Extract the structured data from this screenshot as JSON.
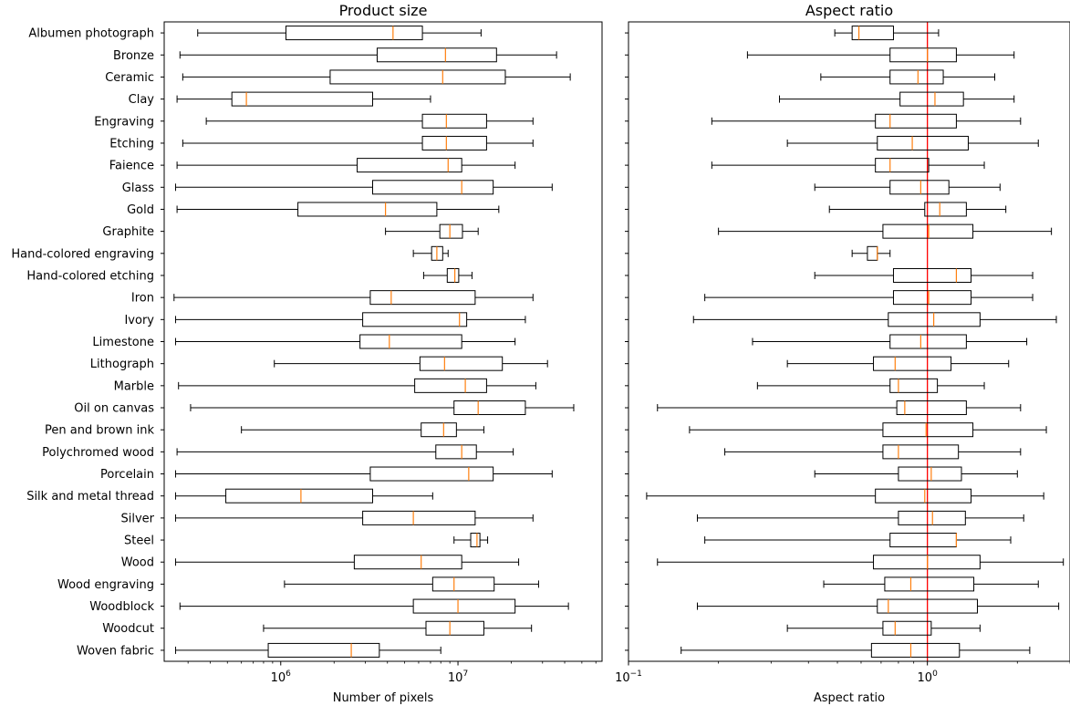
{
  "chart_data": [
    {
      "type": "boxplot",
      "orientation": "horizontal",
      "title": "Product size",
      "xlabel": "Number of pixels",
      "ylabel": "",
      "xscale": "log",
      "xlim": [
        220000,
        65000000
      ],
      "xticks": [
        {
          "value": 1000000,
          "base": "10",
          "exp": "6"
        },
        {
          "value": 10000000,
          "base": "10",
          "exp": "7"
        }
      ],
      "categories": [
        "Albumen photograph",
        "Bronze",
        "Ceramic",
        "Clay",
        "Engraving",
        "Etching",
        "Faience",
        "Glass",
        "Gold",
        "Graphite",
        "Hand-colored engraving",
        "Hand-colored etching",
        "Iron",
        "Ivory",
        "Limestone",
        "Lithograph",
        "Marble",
        "Oil on canvas",
        "Pen and brown ink",
        "Polychromed wood",
        "Porcelain",
        "Silk and metal thread",
        "Silver",
        "Steel",
        "Wood",
        "Wood engraving",
        "Woodblock",
        "Woodcut",
        "Woven fabric"
      ],
      "boxes": [
        {
          "category": "Albumen photograph",
          "whislo": 340000,
          "q1": 1070000,
          "med": 4300000,
          "q3": 6300000,
          "whishi": 13500000
        },
        {
          "category": "Bronze",
          "whislo": 270000,
          "q1": 3500000,
          "med": 8500000,
          "q3": 16500000,
          "whishi": 36000000
        },
        {
          "category": "Ceramic",
          "whislo": 280000,
          "q1": 1900000,
          "med": 8200000,
          "q3": 18500000,
          "whishi": 43000000
        },
        {
          "category": "Clay",
          "whislo": 260000,
          "q1": 530000,
          "med": 640000,
          "q3": 3300000,
          "whishi": 7000000
        },
        {
          "category": "Engraving",
          "whislo": 380000,
          "q1": 6300000,
          "med": 8600000,
          "q3": 14500000,
          "whishi": 26500000
        },
        {
          "category": "Etching",
          "whislo": 280000,
          "q1": 6300000,
          "med": 8600000,
          "q3": 14500000,
          "whishi": 26500000
        },
        {
          "category": "Faience",
          "whislo": 260000,
          "q1": 2700000,
          "med": 8800000,
          "q3": 10500000,
          "whishi": 21000000
        },
        {
          "category": "Glass",
          "whislo": 255000,
          "q1": 3300000,
          "med": 10500000,
          "q3": 15800000,
          "whishi": 34000000
        },
        {
          "category": "Gold",
          "whislo": 260000,
          "q1": 1250000,
          "med": 3900000,
          "q3": 7600000,
          "whishi": 17000000
        },
        {
          "category": "Graphite",
          "whislo": 3900000,
          "q1": 7900000,
          "med": 9000000,
          "q3": 10600000,
          "whishi": 13000000
        },
        {
          "category": "Hand-colored engraving",
          "whislo": 5600000,
          "q1": 7100000,
          "med": 7600000,
          "q3": 8200000,
          "whishi": 8800000
        },
        {
          "category": "Hand-colored etching",
          "whislo": 6400000,
          "q1": 8700000,
          "med": 9600000,
          "q3": 10100000,
          "whishi": 12000000
        },
        {
          "category": "Iron",
          "whislo": 250000,
          "q1": 3200000,
          "med": 4200000,
          "q3": 12500000,
          "whishi": 26500000
        },
        {
          "category": "Ivory",
          "whislo": 255000,
          "q1": 2900000,
          "med": 10200000,
          "q3": 11200000,
          "whishi": 24000000
        },
        {
          "category": "Limestone",
          "whislo": 255000,
          "q1": 2800000,
          "med": 4100000,
          "q3": 10500000,
          "whishi": 21000000
        },
        {
          "category": "Lithograph",
          "whislo": 920000,
          "q1": 6100000,
          "med": 8400000,
          "q3": 17800000,
          "whishi": 32000000
        },
        {
          "category": "Marble",
          "whislo": 265000,
          "q1": 5700000,
          "med": 11000000,
          "q3": 14500000,
          "whishi": 27500000
        },
        {
          "category": "Oil on canvas",
          "whislo": 310000,
          "q1": 9500000,
          "med": 13000000,
          "q3": 24000000,
          "whishi": 45000000
        },
        {
          "category": "Pen and brown ink",
          "whislo": 600000,
          "q1": 6200000,
          "med": 8300000,
          "q3": 9800000,
          "whishi": 14000000
        },
        {
          "category": "Polychromed wood",
          "whislo": 260000,
          "q1": 7500000,
          "med": 10500000,
          "q3": 12700000,
          "whishi": 20500000
        },
        {
          "category": "Porcelain",
          "whislo": 255000,
          "q1": 3200000,
          "med": 11500000,
          "q3": 15800000,
          "whishi": 34000000
        },
        {
          "category": "Silk and metal thread",
          "whislo": 255000,
          "q1": 490000,
          "med": 1300000,
          "q3": 3300000,
          "whishi": 7200000
        },
        {
          "category": "Silver",
          "whislo": 255000,
          "q1": 2900000,
          "med": 5600000,
          "q3": 12500000,
          "whishi": 26500000
        },
        {
          "category": "Steel",
          "whislo": 9500000,
          "q1": 11800000,
          "med": 12800000,
          "q3": 13300000,
          "whishi": 14700000
        },
        {
          "category": "Wood",
          "whislo": 255000,
          "q1": 2600000,
          "med": 6200000,
          "q3": 10500000,
          "whishi": 22000000
        },
        {
          "category": "Wood engraving",
          "whislo": 1050000,
          "q1": 7200000,
          "med": 9500000,
          "q3": 16000000,
          "whishi": 28500000
        },
        {
          "category": "Woodblock",
          "whislo": 270000,
          "q1": 5600000,
          "med": 10000000,
          "q3": 21000000,
          "whishi": 42000000
        },
        {
          "category": "Woodcut",
          "whislo": 800000,
          "q1": 6600000,
          "med": 9000000,
          "q3": 14000000,
          "whishi": 26000000
        },
        {
          "category": "Woven fabric",
          "whislo": 255000,
          "q1": 850000,
          "med": 2500000,
          "q3": 3600000,
          "whishi": 8000000
        }
      ]
    },
    {
      "type": "boxplot",
      "orientation": "horizontal",
      "title": "Aspect ratio",
      "xlabel": "Aspect ratio",
      "ylabel": "",
      "xscale": "log",
      "xlim": [
        0.1,
        3.0
      ],
      "xticks": [
        {
          "value": 0.1,
          "base": "10",
          "exp": "−1"
        },
        {
          "value": 1.0,
          "base": "10",
          "exp": "0"
        }
      ],
      "reference_line": {
        "x": 1.0,
        "color": "#ff0000"
      },
      "categories": [
        "Albumen photograph",
        "Bronze",
        "Ceramic",
        "Clay",
        "Engraving",
        "Etching",
        "Faience",
        "Glass",
        "Gold",
        "Graphite",
        "Hand-colored engraving",
        "Hand-colored etching",
        "Iron",
        "Ivory",
        "Limestone",
        "Lithograph",
        "Marble",
        "Oil on canvas",
        "Pen and brown ink",
        "Polychromed wood",
        "Porcelain",
        "Silk and metal thread",
        "Silver",
        "Steel",
        "Wood",
        "Wood engraving",
        "Woodblock",
        "Woodcut",
        "Woven fabric"
      ],
      "boxes": [
        {
          "category": "Albumen photograph",
          "whislo": 0.49,
          "q1": 0.56,
          "med": 0.59,
          "q3": 0.77,
          "whishi": 1.09
        },
        {
          "category": "Bronze",
          "whislo": 0.25,
          "q1": 0.75,
          "med": 1.0,
          "q3": 1.25,
          "whishi": 1.95
        },
        {
          "category": "Ceramic",
          "whislo": 0.44,
          "q1": 0.75,
          "med": 0.93,
          "q3": 1.13,
          "whishi": 1.68
        },
        {
          "category": "Clay",
          "whislo": 0.32,
          "q1": 0.81,
          "med": 1.06,
          "q3": 1.32,
          "whishi": 1.95
        },
        {
          "category": "Engraving",
          "whislo": 0.19,
          "q1": 0.67,
          "med": 0.75,
          "q3": 1.25,
          "whishi": 2.05
        },
        {
          "category": "Etching",
          "whislo": 0.34,
          "q1": 0.68,
          "med": 0.89,
          "q3": 1.37,
          "whishi": 2.35
        },
        {
          "category": "Faience",
          "whislo": 0.19,
          "q1": 0.67,
          "med": 0.75,
          "q3": 1.01,
          "whishi": 1.55
        },
        {
          "category": "Glass",
          "whislo": 0.42,
          "q1": 0.75,
          "med": 0.95,
          "q3": 1.18,
          "whishi": 1.75
        },
        {
          "category": "Gold",
          "whislo": 0.47,
          "q1": 0.98,
          "med": 1.1,
          "q3": 1.35,
          "whishi": 1.83
        },
        {
          "category": "Graphite",
          "whislo": 0.2,
          "q1": 0.71,
          "med": 1.01,
          "q3": 1.42,
          "whishi": 2.6
        },
        {
          "category": "Hand-colored engraving",
          "whislo": 0.56,
          "q1": 0.63,
          "med": 0.68,
          "q3": 0.68,
          "whishi": 0.75
        },
        {
          "category": "Hand-colored etching",
          "whislo": 0.42,
          "q1": 0.77,
          "med": 1.25,
          "q3": 1.4,
          "whishi": 2.25
        },
        {
          "category": "Iron",
          "whislo": 0.18,
          "q1": 0.77,
          "med": 1.01,
          "q3": 1.4,
          "whishi": 2.25
        },
        {
          "category": "Ivory",
          "whislo": 0.165,
          "q1": 0.74,
          "med": 1.05,
          "q3": 1.5,
          "whishi": 2.7
        },
        {
          "category": "Limestone",
          "whislo": 0.26,
          "q1": 0.75,
          "med": 0.95,
          "q3": 1.35,
          "whishi": 2.15
        },
        {
          "category": "Lithograph",
          "whislo": 0.34,
          "q1": 0.66,
          "med": 0.78,
          "q3": 1.2,
          "whishi": 1.87
        },
        {
          "category": "Marble",
          "whislo": 0.27,
          "q1": 0.75,
          "med": 0.8,
          "q3": 1.08,
          "whishi": 1.55
        },
        {
          "category": "Oil on canvas",
          "whislo": 0.125,
          "q1": 0.79,
          "med": 0.84,
          "q3": 1.35,
          "whishi": 2.05
        },
        {
          "category": "Pen and brown ink",
          "whislo": 0.16,
          "q1": 0.71,
          "med": 0.99,
          "q3": 1.42,
          "whishi": 2.5
        },
        {
          "category": "Polychromed wood",
          "whislo": 0.21,
          "q1": 0.71,
          "med": 0.8,
          "q3": 1.27,
          "whishi": 2.05
        },
        {
          "category": "Porcelain",
          "whislo": 0.42,
          "q1": 0.8,
          "med": 1.03,
          "q3": 1.3,
          "whishi": 2.0
        },
        {
          "category": "Silk and metal thread",
          "whislo": 0.115,
          "q1": 0.67,
          "med": 0.98,
          "q3": 1.4,
          "whishi": 2.45
        },
        {
          "category": "Silver",
          "whislo": 0.17,
          "q1": 0.8,
          "med": 1.04,
          "q3": 1.34,
          "whishi": 2.1
        },
        {
          "category": "Steel",
          "whislo": 0.18,
          "q1": 0.75,
          "med": 1.25,
          "q3": 1.25,
          "whishi": 1.9
        },
        {
          "category": "Wood",
          "whislo": 0.125,
          "q1": 0.66,
          "med": 1.0,
          "q3": 1.5,
          "whishi": 2.85
        },
        {
          "category": "Wood engraving",
          "whislo": 0.45,
          "q1": 0.72,
          "med": 0.88,
          "q3": 1.43,
          "whishi": 2.35
        },
        {
          "category": "Woodblock",
          "whislo": 0.17,
          "q1": 0.68,
          "med": 0.74,
          "q3": 1.47,
          "whishi": 2.75
        },
        {
          "category": "Woodcut",
          "whislo": 0.34,
          "q1": 0.71,
          "med": 0.78,
          "q3": 1.03,
          "whishi": 1.5
        },
        {
          "category": "Woven fabric",
          "whislo": 0.15,
          "q1": 0.65,
          "med": 0.88,
          "q3": 1.28,
          "whishi": 2.2
        }
      ]
    }
  ],
  "colors": {
    "axes": "#000000",
    "box": "#000000",
    "median": "#ff7f0e",
    "reference_line": "#ff0000",
    "background": "#ffffff"
  }
}
